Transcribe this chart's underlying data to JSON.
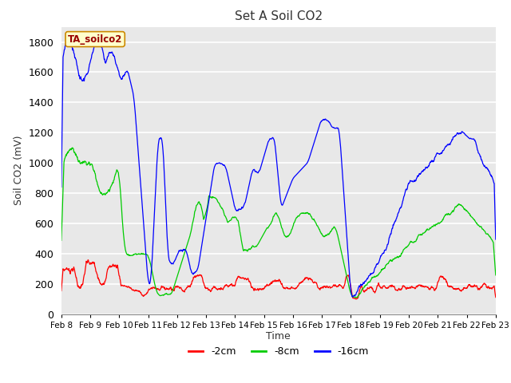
{
  "title": "Set A Soil CO2",
  "ylabel": "Soil CO2 (mV)",
  "xlabel": "Time",
  "legend_label": "TA_soilco2",
  "series_labels": [
    "-2cm",
    "-8cm",
    "-16cm"
  ],
  "series_colors": [
    "#ff0000",
    "#00cc00",
    "#0000ff"
  ],
  "plot_bg_color": "#e8e8e8",
  "ylim": [
    0,
    1900
  ],
  "yticks": [
    0,
    200,
    400,
    600,
    800,
    1000,
    1200,
    1400,
    1600,
    1800
  ],
  "x_start": 8.0,
  "x_end": 23.0,
  "xtick_labels": [
    "Feb 8",
    "Feb 9",
    "Feb 10",
    "Feb 11",
    "Feb 12",
    "Feb 13",
    "Feb 14",
    "Feb 15",
    "Feb 16",
    "Feb 17",
    "Feb 18",
    "Feb 19",
    "Feb 20",
    "Feb 21",
    "Feb 22",
    "Feb 23"
  ],
  "xtick_positions": [
    8,
    9,
    10,
    11,
    12,
    13,
    14,
    15,
    16,
    17,
    18,
    19,
    20,
    21,
    22,
    23
  ]
}
